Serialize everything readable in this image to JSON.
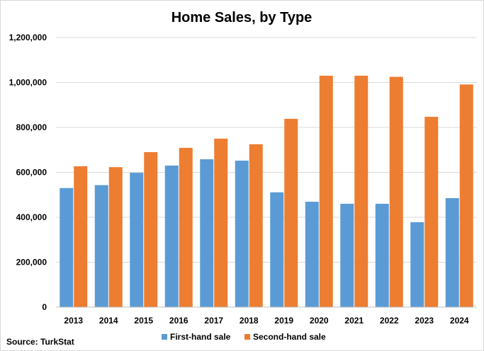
{
  "chart_data": {
    "type": "bar",
    "title": "Home Sales, by Type",
    "xlabel": "",
    "ylabel": "",
    "categories": [
      "2013",
      "2014",
      "2015",
      "2016",
      "2017",
      "2018",
      "2019",
      "2020",
      "2021",
      "2022",
      "2023",
      "2024"
    ],
    "series": [
      {
        "name": "First-hand sale",
        "color": "#5b9bd5",
        "values": [
          530000,
          543000,
          598000,
          630000,
          658000,
          652000,
          511000,
          469000,
          460000,
          460000,
          378000,
          485000
        ]
      },
      {
        "name": "Second-hand sale",
        "color": "#ed7d31",
        "values": [
          627000,
          623000,
          690000,
          709000,
          750000,
          725000,
          838000,
          1030000,
          1030000,
          1025000,
          847000,
          991000
        ]
      }
    ],
    "ylim": [
      0,
      1200000
    ],
    "yticks": [
      0,
      200000,
      400000,
      600000,
      800000,
      1000000,
      1200000
    ],
    "ytick_labels": [
      "0",
      "200,000",
      "400,000",
      "600,000",
      "800,000",
      "1,000,000",
      "1,200,000"
    ],
    "grid": true,
    "legend_position": "bottom"
  },
  "source": "Source: TurkStat"
}
